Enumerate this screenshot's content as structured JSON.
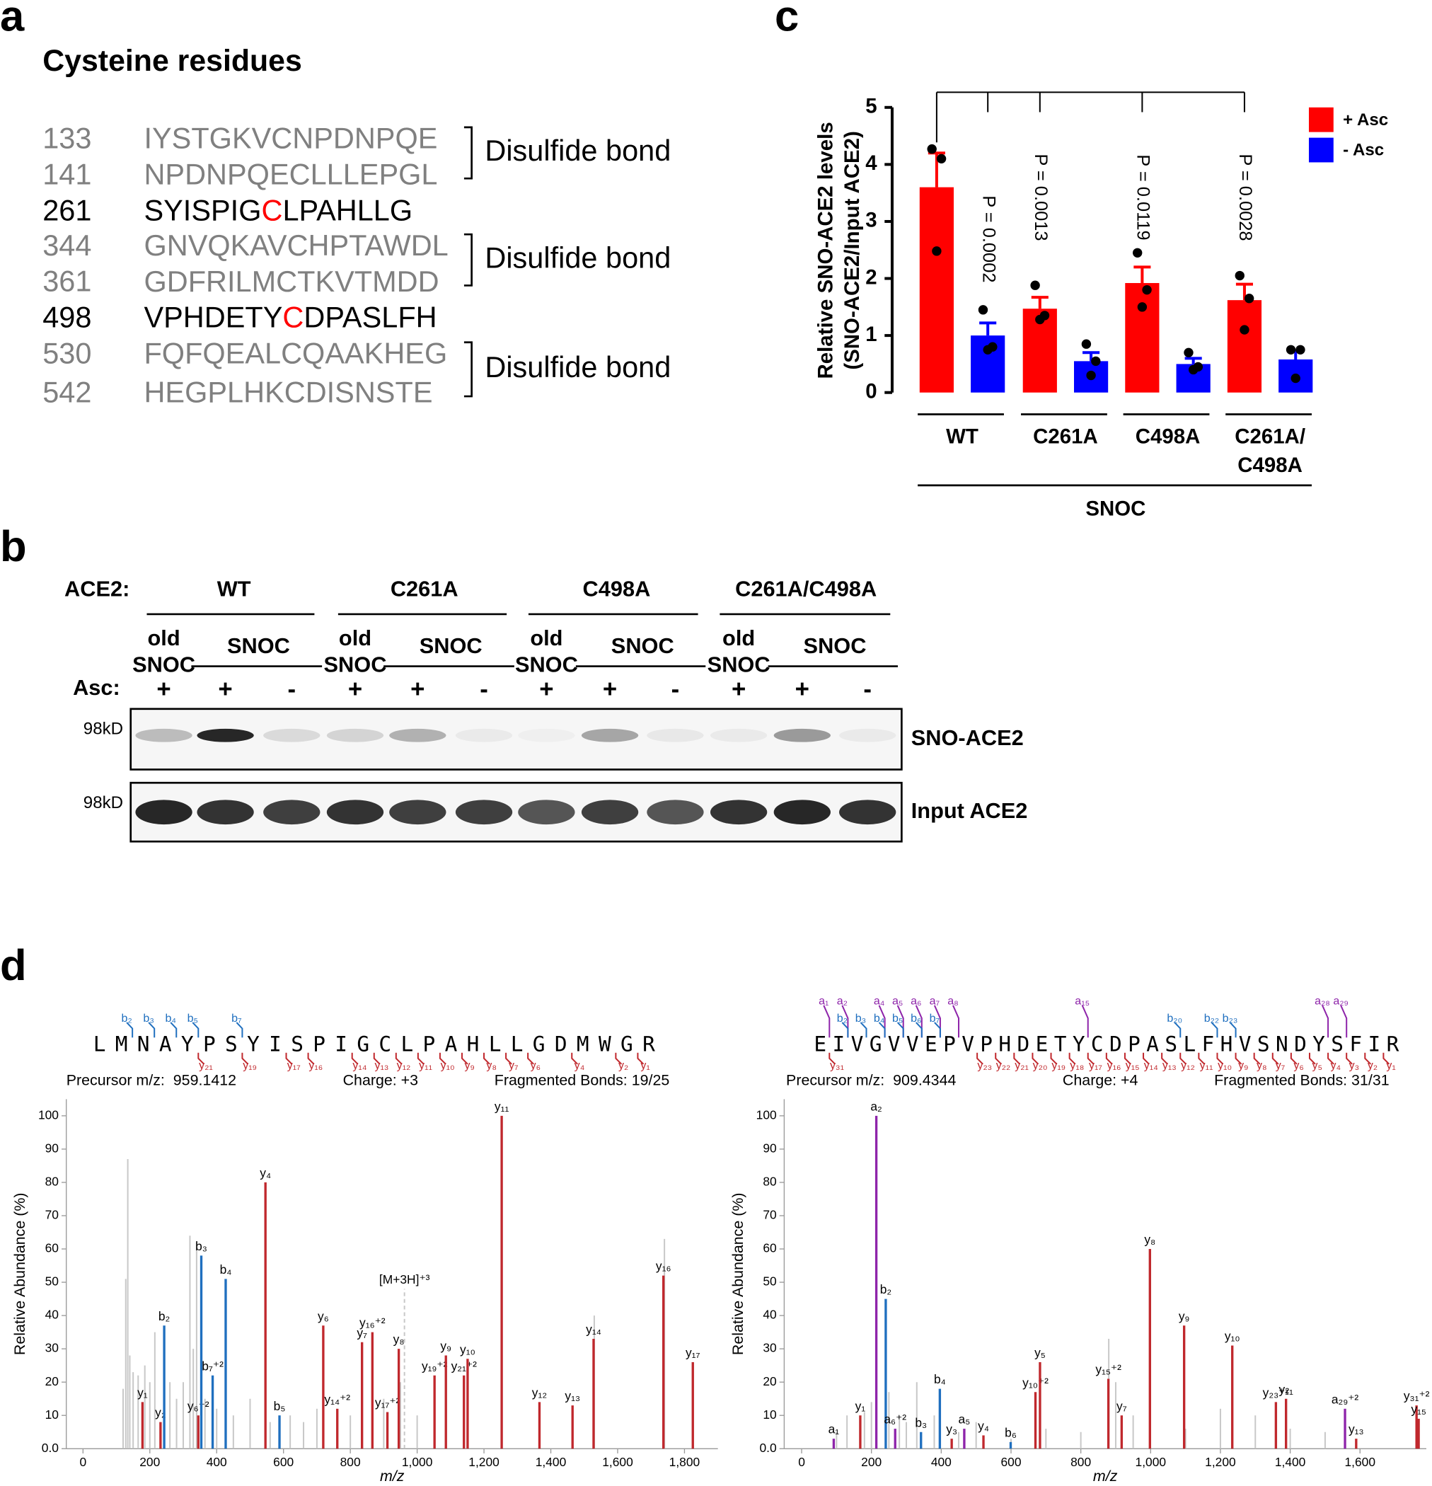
{
  "panel_a": {
    "letter": "a",
    "title": "Cysteine residues",
    "rows": [
      {
        "number": "133",
        "color": "#808080",
        "parts": [
          "IYSTGKVCNPDNPQE"
        ],
        "part_colors": [
          "#808080"
        ]
      },
      {
        "number": "141",
        "color": "#808080",
        "parts": [
          "NPDNPQECLLLEPGL"
        ],
        "part_colors": [
          "#808080"
        ]
      },
      {
        "number": "261",
        "color": "#000000",
        "parts": [
          "SYISPIG",
          "C",
          "LPAHLLG"
        ],
        "part_colors": [
          "#000000",
          "#ff0000",
          "#000000"
        ]
      },
      {
        "number": "344",
        "color": "#808080",
        "parts": [
          "GNVQKAVCHPTAWDL"
        ],
        "part_colors": [
          "#808080"
        ]
      },
      {
        "number": "361",
        "color": "#808080",
        "parts": [
          "GDFRILMCTKVTMDD"
        ],
        "part_colors": [
          "#808080"
        ]
      },
      {
        "number": "498",
        "color": "#000000",
        "parts": [
          "VPHDETY",
          "C",
          "DPASLFH"
        ],
        "part_colors": [
          "#000000",
          "#ff0000",
          "#000000"
        ]
      },
      {
        "number": "530",
        "color": "#808080",
        "parts": [
          "FQFQEALCQAAKHEG"
        ],
        "part_colors": [
          "#808080"
        ]
      },
      {
        "number": "542",
        "color": "#808080",
        "parts": [
          "HEGPLHKCDISNSTE"
        ],
        "part_colors": [
          "#808080"
        ]
      }
    ],
    "bond_labels": [
      "Disulfide bond",
      "Disulfide bond",
      "Disulfide bond"
    ]
  },
  "panel_b": {
    "letter": "b",
    "ace2_label": "ACE2:",
    "asc_label": "Asc:",
    "groups": [
      {
        "name": "WT",
        "old": "old",
        "old_snoc": "SNOC",
        "snoc": "SNOC",
        "asc": [
          "+",
          "+",
          "-"
        ]
      },
      {
        "name": "C261A",
        "old": "old",
        "old_snoc": "SNOC",
        "snoc": "SNOC",
        "asc": [
          "+",
          "+",
          "-"
        ]
      },
      {
        "name": "C498A",
        "old": "old",
        "old_snoc": "SNOC",
        "snoc": "SNOC",
        "asc": [
          "+",
          "+",
          "-"
        ]
      },
      {
        "name": "C261A/C498A",
        "old": "old",
        "old_snoc": "SNOC",
        "snoc": "SNOC",
        "asc": [
          "+",
          "+",
          "-"
        ]
      }
    ],
    "markers": [
      "98kD",
      "98kD"
    ],
    "blots": [
      "SNO-ACE2",
      "Input ACE2"
    ]
  },
  "panel_c": {
    "letter": "c",
    "type": "bar",
    "ylabel": [
      "Relative SNO-ACE2 levels",
      "(SNO-ACE2/Input ACE2)"
    ],
    "groups": [
      [
        "WT"
      ],
      [
        "C261A"
      ],
      [
        "C498A"
      ],
      [
        "C261A/",
        "C498A"
      ]
    ],
    "treatment": "SNOC",
    "ylim": [
      0,
      5
    ],
    "yticks": [
      0,
      1,
      2,
      3,
      4,
      5
    ],
    "series": [
      {
        "name": "+ Asc",
        "color": "#ff0000",
        "values": [
          3.6,
          1.47,
          1.92,
          1.62
        ],
        "errors": [
          0.6,
          0.2,
          0.28,
          0.28
        ],
        "points": [
          [
            4.27,
            4.1,
            2.48
          ],
          [
            1.88,
            1.35,
            1.28
          ],
          [
            2.45,
            1.8,
            1.5
          ],
          [
            2.05,
            1.65,
            1.1
          ]
        ]
      },
      {
        "name": "- Asc",
        "color": "#0000ff",
        "values": [
          1.0,
          0.55,
          0.5,
          0.58
        ],
        "errors": [
          0.22,
          0.15,
          0.1,
          0.15
        ],
        "points": [
          [
            1.45,
            0.8,
            0.75
          ],
          [
            0.85,
            0.55,
            0.3
          ],
          [
            0.7,
            0.45,
            0.4
          ],
          [
            0.75,
            0.75,
            0.25
          ]
        ]
      }
    ],
    "p_values": [
      "P = 0.0002",
      "P = 0.0013",
      "P = 0.0119",
      "P = 0.0028"
    ]
  },
  "panel_d": {
    "letter": "d",
    "colors": {
      "a": "#8e24aa",
      "b": "#1f6fbf",
      "y": "#c0282d",
      "other": "#c8c8c8"
    },
    "spectra": [
      {
        "sequence": "LMNAYPSYISPIGCLPAHLLGDMWGR",
        "seq_ions": {
          "a": [],
          "b": [
            "b₂",
            "b₃",
            "b₄",
            "b₅",
            "b₇"
          ],
          "y": [
            "y₂₁",
            "y₁₉",
            "y₁₇",
            "y₁₆",
            "y₁₄",
            "y₁₃",
            "y₁₂",
            "y₁₁",
            "y₁₀",
            "y₉",
            "y₈",
            "y₇",
            "y₆",
            "y₄",
            "y₂",
            "y₁"
          ]
        },
        "precursor": "Precursor m/z:  959.1412",
        "charge": "Charge: +3",
        "fragmented": "Fragmented Bonds: 19/25",
        "xlabel": "m/z",
        "ylabel": "Relative Abundance (%)",
        "xlim": [
          -50,
          1900
        ],
        "ylim": [
          0,
          105
        ],
        "xticks": [
          0,
          200,
          400,
          600,
          800,
          {
            "value": 1000,
            "label": "1,000"
          },
          {
            "value": 1200,
            "label": "1,200"
          },
          {
            "value": 1400,
            "label": "1,400"
          },
          {
            "value": 1600,
            "label": "1,600"
          },
          {
            "value": 1800,
            "label": "1,800"
          }
        ],
        "yticks": [
          {
            "value": 0,
            "label": "0.0"
          },
          10,
          20,
          30,
          40,
          50,
          60,
          70,
          80,
          90,
          100
        ],
        "peaks": [
          {
            "mz": 120,
            "intensity": 18
          },
          {
            "mz": 128,
            "intensity": 51
          },
          {
            "mz": 134,
            "intensity": 87
          },
          {
            "mz": 140,
            "intensity": 28
          },
          {
            "mz": 150,
            "intensity": 23
          },
          {
            "mz": 165,
            "intensity": 22
          },
          {
            "mz": 185,
            "intensity": 25
          },
          {
            "mz": 200,
            "intensity": 20
          },
          {
            "mz": 215,
            "intensity": 35
          },
          {
            "mz": 260,
            "intensity": 20
          },
          {
            "mz": 280,
            "intensity": 15
          },
          {
            "mz": 300,
            "intensity": 20
          },
          {
            "mz": 320,
            "intensity": 64
          },
          {
            "mz": 330,
            "intensity": 30
          },
          {
            "mz": 340,
            "intensity": 62
          },
          {
            "mz": 365,
            "intensity": 15
          },
          {
            "mz": 400,
            "intensity": 12
          },
          {
            "mz": 450,
            "intensity": 10
          },
          {
            "mz": 500,
            "intensity": 15
          },
          {
            "mz": 560,
            "intensity": 8
          },
          {
            "mz": 620,
            "intensity": 10
          },
          {
            "mz": 660,
            "intensity": 8
          },
          {
            "mz": 700,
            "intensity": 12
          },
          {
            "mz": 800,
            "intensity": 10
          },
          {
            "mz": 900,
            "intensity": 15
          },
          {
            "mz": 950,
            "intensity": 20
          },
          {
            "mz": 1000,
            "intensity": 10
          },
          {
            "mz": 1150,
            "intensity": 20
          },
          {
            "mz": 1530,
            "intensity": 40
          },
          {
            "mz": 1740,
            "intensity": 63
          },
          {
            "mz": 178,
            "intensity": 14,
            "ion": "y",
            "label": "y₁"
          },
          {
            "mz": 232,
            "intensity": 8,
            "ion": "y",
            "label": "y₂"
          },
          {
            "mz": 243,
            "intensity": 37,
            "ion": "b",
            "label": "b₂"
          },
          {
            "mz": 345,
            "intensity": 10,
            "ion": "y",
            "label": "y₆⁺²"
          },
          {
            "mz": 354,
            "intensity": 58,
            "ion": "b",
            "label": "b₃"
          },
          {
            "mz": 388,
            "intensity": 22,
            "ion": "b",
            "label": "b₇⁺²"
          },
          {
            "mz": 427,
            "intensity": 51,
            "ion": "b",
            "label": "b₄"
          },
          {
            "mz": 546,
            "intensity": 80,
            "ion": "y",
            "label": "y₄"
          },
          {
            "mz": 588,
            "intensity": 10,
            "ion": "b",
            "label": "b₅"
          },
          {
            "mz": 719,
            "intensity": 37,
            "ion": "y",
            "label": "y₆"
          },
          {
            "mz": 761,
            "intensity": 12,
            "ion": "y",
            "label": "y₁₄⁺²"
          },
          {
            "mz": 835,
            "intensity": 32,
            "ion": "y",
            "label": "y₇"
          },
          {
            "mz": 866,
            "intensity": 35,
            "ion": "y",
            "label": "y₁₆⁺²"
          },
          {
            "mz": 911,
            "intensity": 11,
            "ion": "y",
            "label": "y₁₇⁺²"
          },
          {
            "mz": 945,
            "intensity": 30,
            "ion": "y",
            "label": "y₈"
          },
          {
            "mz": 962,
            "intensity": 48,
            "ion": "other",
            "label": "[M+3H]⁺³"
          },
          {
            "mz": 1052,
            "intensity": 22,
            "ion": "y",
            "label": "y₁₉⁺²"
          },
          {
            "mz": 1086,
            "intensity": 28,
            "ion": "y",
            "label": "y₉"
          },
          {
            "mz": 1140,
            "intensity": 22,
            "ion": "y",
            "label": "y₂₁⁺²"
          },
          {
            "mz": 1151,
            "intensity": 27,
            "ion": "y",
            "label": "y₁₀"
          },
          {
            "mz": 1253,
            "intensity": 100,
            "ion": "y",
            "label": "y₁₁"
          },
          {
            "mz": 1366,
            "intensity": 14,
            "ion": "y",
            "label": "y₁₂"
          },
          {
            "mz": 1465,
            "intensity": 13,
            "ion": "y",
            "label": "y₁₃"
          },
          {
            "mz": 1528,
            "intensity": 33,
            "ion": "y",
            "label": "y₁₄"
          },
          {
            "mz": 1737,
            "intensity": 52,
            "ion": "y",
            "label": "y₁₆"
          },
          {
            "mz": 1825,
            "intensity": 26,
            "ion": "y",
            "label": "y₁₇"
          }
        ]
      },
      {
        "sequence": "EIVGVVEPVPHDETYCDPASLFHVSNDYSFIR",
        "seq_ions": {
          "a": [
            "a₁",
            "a₂",
            "a₄",
            "a₅",
            "a₆",
            "a₇",
            "a₈",
            "a₁₅",
            "a₂₈",
            "a₂₉"
          ],
          "b": [
            "b₂",
            "b₃",
            "b₄",
            "b₅",
            "b₆",
            "b₇",
            "b₂₀",
            "b₂₂",
            "b₂₃"
          ],
          "y": [
            "y₃₁",
            "y₂₃",
            "y₂₂",
            "y₂₁",
            "y₂₀",
            "y₁₉",
            "y₁₈",
            "y₁₇",
            "y₁₆",
            "y₁₅",
            "y₁₄",
            "y₁₃",
            "y₁₂",
            "y₁₁",
            "y₁₀",
            "y₉",
            "y₈",
            "y₇",
            "y₆",
            "y₅",
            "y₄",
            "y₃",
            "y₂",
            "y₁"
          ]
        },
        "precursor": "Precursor m/z:  909.4344",
        "charge": "Charge: +4",
        "fragmented": "Fragmented Bonds: 31/31",
        "xlabel": "m/z",
        "ylabel": "Relative Abundance (%)",
        "xlim": [
          -50,
          1790
        ],
        "ylim": [
          0,
          105
        ],
        "xticks": [
          0,
          200,
          400,
          600,
          800,
          {
            "value": 1000,
            "label": "1,000"
          },
          {
            "value": 1200,
            "label": "1,200"
          },
          {
            "value": 1400,
            "label": "1,400"
          },
          {
            "value": 1600,
            "label": "1,600"
          }
        ],
        "yticks": [
          {
            "value": 0,
            "label": "0.0"
          },
          10,
          20,
          30,
          40,
          50,
          60,
          70,
          80,
          90,
          100
        ],
        "peaks": [
          {
            "mz": 100,
            "intensity": 5
          },
          {
            "mz": 130,
            "intensity": 10
          },
          {
            "mz": 180,
            "intensity": 11
          },
          {
            "mz": 200,
            "intensity": 14
          },
          {
            "mz": 250,
            "intensity": 17
          },
          {
            "mz": 280,
            "intensity": 10
          },
          {
            "mz": 300,
            "intensity": 8
          },
          {
            "mz": 330,
            "intensity": 20
          },
          {
            "mz": 380,
            "intensity": 10
          },
          {
            "mz": 450,
            "intensity": 5
          },
          {
            "mz": 500,
            "intensity": 8
          },
          {
            "mz": 600,
            "intensity": 3
          },
          {
            "mz": 700,
            "intensity": 6
          },
          {
            "mz": 800,
            "intensity": 5
          },
          {
            "mz": 880,
            "intensity": 33
          },
          {
            "mz": 900,
            "intensity": 20
          },
          {
            "mz": 950,
            "intensity": 10
          },
          {
            "mz": 1100,
            "intensity": 6
          },
          {
            "mz": 1200,
            "intensity": 12
          },
          {
            "mz": 1300,
            "intensity": 10
          },
          {
            "mz": 1400,
            "intensity": 6
          },
          {
            "mz": 1500,
            "intensity": 5
          },
          {
            "mz": 92,
            "intensity": 3,
            "ion": "a",
            "label": "a₁"
          },
          {
            "mz": 168,
            "intensity": 10,
            "ion": "y",
            "label": "y₁"
          },
          {
            "mz": 214,
            "intensity": 100,
            "ion": "a",
            "label": "a₂"
          },
          {
            "mz": 241,
            "intensity": 45,
            "ion": "b",
            "label": "b₂"
          },
          {
            "mz": 268,
            "intensity": 6,
            "ion": "a",
            "label": "a₆⁺²"
          },
          {
            "mz": 342,
            "intensity": 5,
            "ion": "b",
            "label": "b₃"
          },
          {
            "mz": 396,
            "intensity": 18,
            "ion": "b",
            "label": "b₄"
          },
          {
            "mz": 430,
            "intensity": 3,
            "ion": "y",
            "label": "y₃"
          },
          {
            "mz": 466,
            "intensity": 6,
            "ion": "a",
            "label": "a₅"
          },
          {
            "mz": 521,
            "intensity": 4,
            "ion": "y",
            "label": "y₄"
          },
          {
            "mz": 599,
            "intensity": 2,
            "ion": "b",
            "label": "b₆"
          },
          {
            "mz": 670,
            "intensity": 17,
            "ion": "y",
            "label": "y₁₀⁺²"
          },
          {
            "mz": 683,
            "intensity": 26,
            "ion": "y",
            "label": "y₅"
          },
          {
            "mz": 879,
            "intensity": 21,
            "ion": "y",
            "label": "y₁₅⁺²"
          },
          {
            "mz": 917,
            "intensity": 10,
            "ion": "y",
            "label": "y₇"
          },
          {
            "mz": 998,
            "intensity": 60,
            "ion": "y",
            "label": "y₈"
          },
          {
            "mz": 1096,
            "intensity": 37,
            "ion": "y",
            "label": "y₉"
          },
          {
            "mz": 1234,
            "intensity": 31,
            "ion": "y",
            "label": "y₁₀"
          },
          {
            "mz": 1359,
            "intensity": 14,
            "ion": "y",
            "label": "y₂₃⁺²"
          },
          {
            "mz": 1388,
            "intensity": 15,
            "ion": "y",
            "label": "y₁₁"
          },
          {
            "mz": 1557,
            "intensity": 12,
            "ion": "a",
            "label": "a₂₉⁺²"
          },
          {
            "mz": 1589,
            "intensity": 3,
            "ion": "y",
            "label": "y₁₃"
          },
          {
            "mz": 1762,
            "intensity": 13,
            "ion": "y",
            "label": "y₃₁⁺²"
          },
          {
            "mz": 1768,
            "intensity": 9,
            "ion": "y",
            "label": "y₁₅"
          }
        ]
      }
    ]
  }
}
